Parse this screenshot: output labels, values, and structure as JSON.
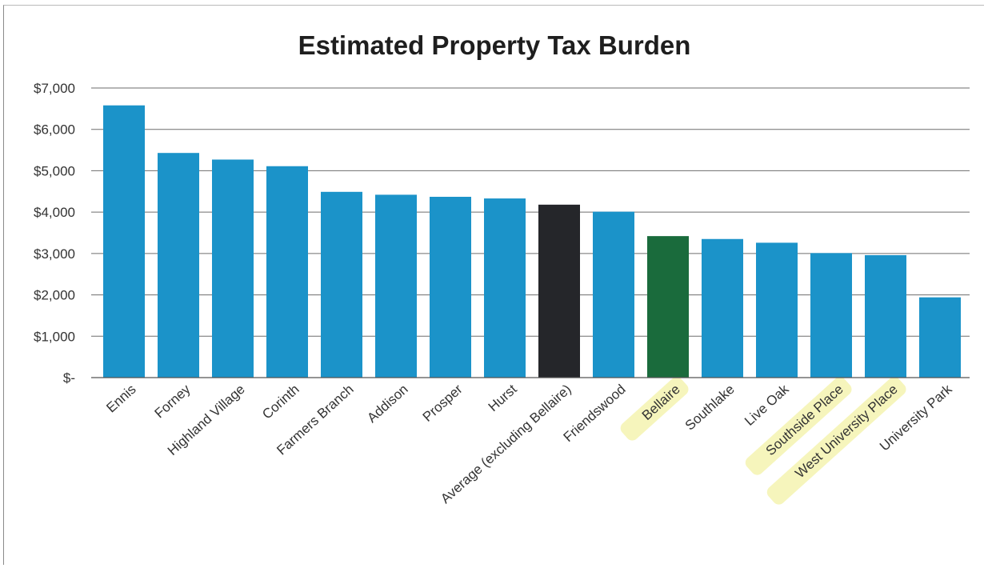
{
  "chart_data": {
    "type": "bar",
    "title": "Estimated Property Tax Burden",
    "xlabel": "",
    "ylabel": "",
    "ylim": [
      0,
      7000
    ],
    "yticks": [
      0,
      1000,
      2000,
      3000,
      4000,
      5000,
      6000,
      7000
    ],
    "ytick_labels": [
      "$-",
      "$1,000",
      "$2,000",
      "$3,000",
      "$4,000",
      "$5,000",
      "$6,000",
      "$7,000"
    ],
    "grid": true,
    "legend": "none",
    "categories": [
      "Ennis",
      "Forney",
      "Highland Village",
      "Corinth",
      "Farmers Branch",
      "Addison",
      "Prosper",
      "Hurst",
      "Average (excluding Bellaire)",
      "Friendswood",
      "Bellaire",
      "Southlake",
      "Live Oak",
      "Southside Place",
      "West University Place",
      "University Park"
    ],
    "values": [
      6580,
      5430,
      5270,
      5110,
      4490,
      4420,
      4370,
      4330,
      4180,
      4010,
      3420,
      3350,
      3260,
      3010,
      2960,
      1940
    ],
    "bar_colors": [
      "#1b93c9",
      "#1b93c9",
      "#1b93c9",
      "#1b93c9",
      "#1b93c9",
      "#1b93c9",
      "#1b93c9",
      "#1b93c9",
      "#25262a",
      "#1b93c9",
      "#1a6b3c",
      "#1b93c9",
      "#1b93c9",
      "#1b93c9",
      "#1b93c9",
      "#1b93c9"
    ],
    "highlighted_labels": [
      "Bellaire",
      "Southside Place",
      "West University Place"
    ]
  }
}
